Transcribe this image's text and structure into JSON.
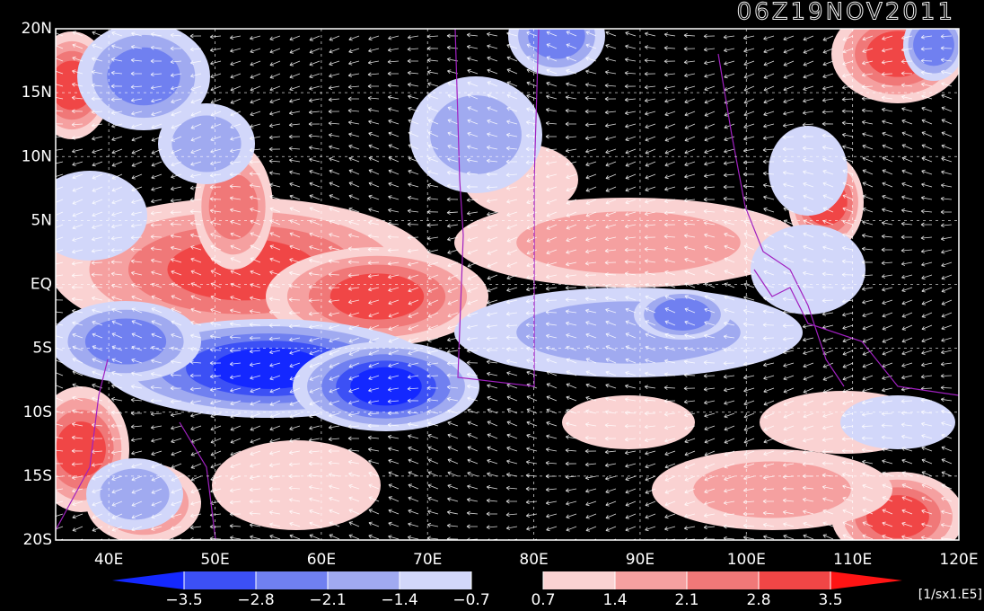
{
  "map": {
    "title": "06Z19NOV2011",
    "lonlim": [
      35,
      120
    ],
    "latlim": [
      -20,
      20
    ],
    "lon_ticks": [
      {
        "value": 40,
        "label": "40E"
      },
      {
        "value": 50,
        "label": "50E"
      },
      {
        "value": 60,
        "label": "60E"
      },
      {
        "value": 70,
        "label": "70E"
      },
      {
        "value": 80,
        "label": "80E"
      },
      {
        "value": 90,
        "label": "90E"
      },
      {
        "value": 100,
        "label": "100E"
      },
      {
        "value": 110,
        "label": "110E"
      },
      {
        "value": 120,
        "label": "120E"
      }
    ],
    "lat_ticks": [
      {
        "value": 20,
        "label": "20N"
      },
      {
        "value": 15,
        "label": "15N"
      },
      {
        "value": 10,
        "label": "10N"
      },
      {
        "value": 5,
        "label": "5N"
      },
      {
        "value": 0,
        "label": "EQ"
      },
      {
        "value": -5,
        "label": "5S"
      },
      {
        "value": -10,
        "label": "10S"
      },
      {
        "value": -15,
        "label": "15S"
      },
      {
        "value": -20,
        "label": "20S"
      }
    ],
    "colorbar": {
      "levels": [
        {
          "value": -3.5,
          "label": "−3.5"
        },
        {
          "value": -2.8,
          "label": "−2.8"
        },
        {
          "value": -2.1,
          "label": "−2.1"
        },
        {
          "value": -1.4,
          "label": "−1.4"
        },
        {
          "value": -0.7,
          "label": "−0.7"
        },
        {
          "value": 0.7,
          "label": "0.7"
        },
        {
          "value": 1.4,
          "label": "1.4"
        },
        {
          "value": 2.1,
          "label": "2.1"
        },
        {
          "value": 2.8,
          "label": "2.8"
        },
        {
          "value": 3.5,
          "label": "3.5"
        }
      ],
      "colors": [
        "#1428ff",
        "#3c50f5",
        "#7080f0",
        "#a0aaf0",
        "#d2d7fa",
        "#000000",
        "#fad2d2",
        "#f5a0a0",
        "#f07878",
        "#f04646",
        "#ff1414"
      ],
      "unit": "[1/sx1.E5]"
    }
  }
}
